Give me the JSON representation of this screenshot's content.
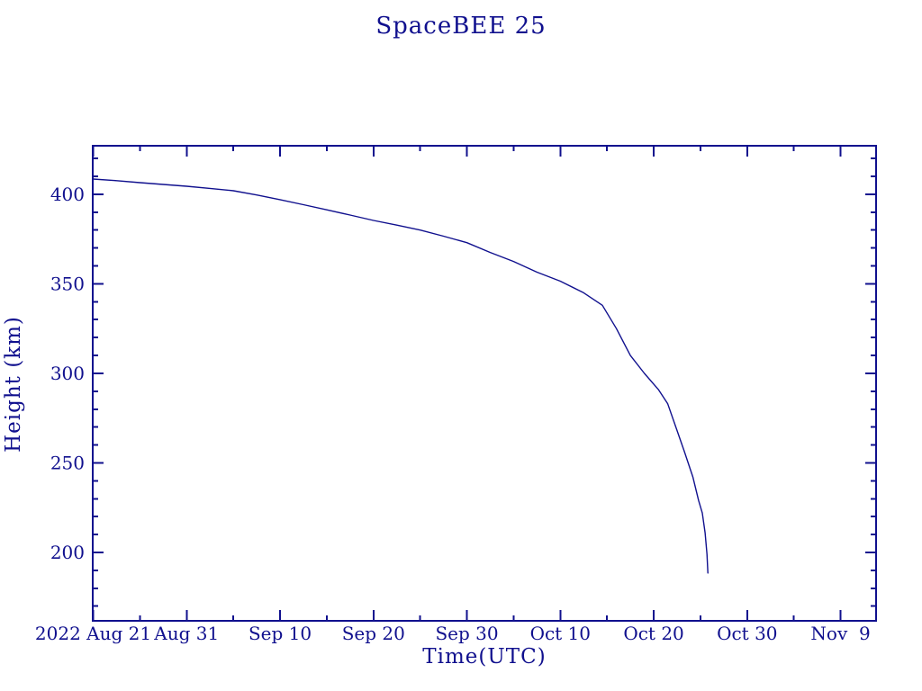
{
  "page": {
    "title": "SpaceBEE 25"
  },
  "style": {
    "ink_color": "#10108E",
    "background": "#ffffff"
  },
  "chart_data": {
    "type": "line",
    "title": "SpaceBEE 25",
    "xlabel": "Time(UTC)",
    "ylabel": "Height (km)",
    "x_axis": {
      "unit": "days after 2022 Aug 21",
      "major_tick_days": [
        0,
        10,
        20,
        30,
        40,
        50,
        60,
        70,
        80
      ],
      "major_tick_labels": [
        "2022 Aug 21",
        "Aug 31",
        "Sep 10",
        "Sep 20",
        "Sep 30",
        "Oct 10",
        "Oct 20",
        "Oct 30",
        "Nov  9"
      ],
      "minor_tick_interval_days": 5,
      "range_days": [
        -0.05,
        83.8
      ],
      "grid": false
    },
    "y_axis": {
      "major_ticks": [
        200,
        250,
        300,
        350,
        400
      ],
      "major_tick_labels": [
        "200",
        "250",
        "300",
        "350",
        "400"
      ],
      "minor_tick_interval": 10,
      "range": [
        161.8,
        427.1
      ],
      "grid": false
    },
    "series": [
      {
        "name": "Height (km)",
        "color": "#10108E",
        "days": [
          0,
          2.5,
          5,
          7.5,
          10,
          12.5,
          15,
          17.5,
          20,
          22.5,
          25,
          27.5,
          30,
          32.5,
          35,
          37.5,
          40,
          42.5,
          45,
          47.5,
          50,
          52.5,
          54.5,
          56,
          57.5,
          59,
          60.5,
          61.5,
          62.5,
          63.3,
          64.2,
          64.8,
          65.2,
          65.5,
          65.7,
          65.8
        ],
        "heights_km": [
          408.5,
          407.6,
          406.5,
          405.5,
          404.5,
          403.3,
          402,
          399.6,
          397,
          394.2,
          391.3,
          388.4,
          385.4,
          382.8,
          380,
          376.6,
          373,
          367.5,
          362.5,
          356.5,
          351.5,
          345,
          338,
          325,
          310,
          300,
          291,
          283,
          268,
          256,
          242,
          229,
          222,
          211,
          199,
          188.5
        ]
      }
    ],
    "annotations": {
      "start_height_km": 408.5,
      "end_height_km": 188.5,
      "end_date": "2022 Oct 25"
    }
  }
}
